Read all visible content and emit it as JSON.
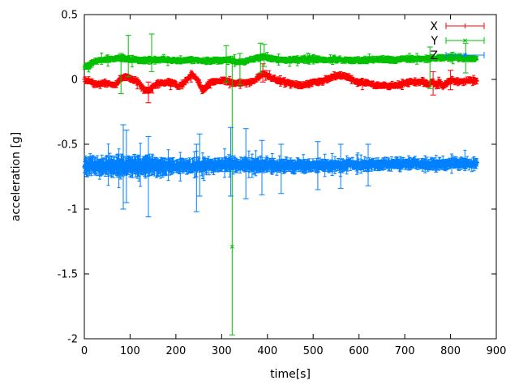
{
  "chart_data": {
    "type": "scatter",
    "style": "points-with-yerrorbars",
    "title": "",
    "xlabel": "time[s]",
    "ylabel": "acceleration [g]",
    "xlim": [
      0,
      900
    ],
    "ylim": [
      -2,
      0.5
    ],
    "xticks": [
      0,
      100,
      200,
      300,
      400,
      500,
      600,
      700,
      800,
      900
    ],
    "yticks": [
      0.5,
      0,
      -0.5,
      -1,
      -1.5,
      -2
    ],
    "grid": false,
    "background": "#ffffff",
    "axis_color": "#000000",
    "legend": {
      "position": "top-right-inside",
      "entries": [
        "X",
        "Y",
        "Z"
      ]
    },
    "sample_interval_s": 1.0,
    "series": [
      {
        "name": "X",
        "color": "#ff0000",
        "marker": "plus",
        "t_start": 0.5,
        "t_end": 858,
        "noise": 0.018,
        "err": 0.015,
        "err_scale": [
          [
            0,
            1
          ],
          [
            858,
            1
          ]
        ],
        "baseline": [
          [
            0,
            0.0
          ],
          [
            12,
            -0.015
          ],
          [
            25,
            -0.04
          ],
          [
            40,
            -0.03
          ],
          [
            55,
            -0.03
          ],
          [
            68,
            -0.04
          ],
          [
            80,
            0.0
          ],
          [
            92,
            0.02
          ],
          [
            104,
            0.0
          ],
          [
            118,
            -0.02
          ],
          [
            130,
            -0.085
          ],
          [
            142,
            -0.09
          ],
          [
            152,
            -0.045
          ],
          [
            162,
            -0.03
          ],
          [
            180,
            -0.02
          ],
          [
            196,
            -0.03
          ],
          [
            205,
            -0.055
          ],
          [
            215,
            -0.04
          ],
          [
            228,
            0.02
          ],
          [
            238,
            0.035
          ],
          [
            248,
            0.0
          ],
          [
            258,
            -0.085
          ],
          [
            266,
            -0.06
          ],
          [
            275,
            -0.03
          ],
          [
            290,
            -0.015
          ],
          [
            305,
            -0.01
          ],
          [
            318,
            -0.02
          ],
          [
            332,
            -0.03
          ],
          [
            346,
            -0.03
          ],
          [
            360,
            -0.025
          ],
          [
            375,
            -0.005
          ],
          [
            388,
            0.045
          ],
          [
            398,
            0.035
          ],
          [
            408,
            0.015
          ],
          [
            420,
            -0.005
          ],
          [
            435,
            -0.02
          ],
          [
            450,
            -0.03
          ],
          [
            465,
            -0.045
          ],
          [
            478,
            -0.05
          ],
          [
            492,
            -0.03
          ],
          [
            505,
            -0.02
          ],
          [
            520,
            -0.015
          ],
          [
            535,
            0.01
          ],
          [
            550,
            0.028
          ],
          [
            565,
            0.03
          ],
          [
            578,
            0.012
          ],
          [
            592,
            -0.018
          ],
          [
            606,
            -0.022
          ],
          [
            620,
            -0.03
          ],
          [
            635,
            -0.042
          ],
          [
            650,
            -0.05
          ],
          [
            668,
            -0.05
          ],
          [
            682,
            -0.048
          ],
          [
            695,
            -0.032
          ],
          [
            710,
            -0.02
          ],
          [
            725,
            -0.018
          ],
          [
            740,
            -0.02
          ],
          [
            752,
            -0.04
          ],
          [
            760,
            -0.01
          ],
          [
            768,
            -0.045
          ],
          [
            776,
            -0.02
          ],
          [
            784,
            -0.055
          ],
          [
            792,
            -0.02
          ],
          [
            802,
            -0.002
          ],
          [
            812,
            -0.02
          ],
          [
            825,
            -0.02
          ],
          [
            840,
            -0.012
          ],
          [
            858,
            -0.008
          ]
        ],
        "outliers": [
          {
            "t": 140,
            "y": -0.1,
            "lo": -0.18,
            "hi": -0.02
          },
          {
            "t": 390,
            "y": 0.05,
            "lo": -0.02,
            "hi": 0.12
          },
          {
            "t": 762,
            "y": -0.02,
            "lo": -0.12,
            "hi": 0.06
          },
          {
            "t": 800,
            "y": 0.0,
            "lo": -0.08,
            "hi": 0.07
          }
        ]
      },
      {
        "name": "Y",
        "color": "#00c000",
        "marker": "cross",
        "t_start": 0.5,
        "t_end": 858,
        "noise": 0.014,
        "err": 0.015,
        "err_scale": [
          [
            0,
            1
          ],
          [
            858,
            1
          ]
        ],
        "baseline": [
          [
            0,
            0.1
          ],
          [
            8,
            0.102
          ],
          [
            16,
            0.125
          ],
          [
            25,
            0.14
          ],
          [
            40,
            0.152
          ],
          [
            60,
            0.158
          ],
          [
            78,
            0.165
          ],
          [
            92,
            0.16
          ],
          [
            105,
            0.152
          ],
          [
            120,
            0.148
          ],
          [
            140,
            0.15
          ],
          [
            160,
            0.153
          ],
          [
            178,
            0.15
          ],
          [
            196,
            0.148
          ],
          [
            215,
            0.145
          ],
          [
            232,
            0.15
          ],
          [
            250,
            0.146
          ],
          [
            268,
            0.142
          ],
          [
            285,
            0.144
          ],
          [
            302,
            0.148
          ],
          [
            318,
            0.15
          ],
          [
            332,
            0.132
          ],
          [
            348,
            0.136
          ],
          [
            364,
            0.15
          ],
          [
            378,
            0.168
          ],
          [
            390,
            0.178
          ],
          [
            402,
            0.168
          ],
          [
            415,
            0.156
          ],
          [
            430,
            0.15
          ],
          [
            450,
            0.15
          ],
          [
            470,
            0.155
          ],
          [
            490,
            0.158
          ],
          [
            510,
            0.154
          ],
          [
            530,
            0.15
          ],
          [
            550,
            0.154
          ],
          [
            570,
            0.15
          ],
          [
            590,
            0.146
          ],
          [
            610,
            0.15
          ],
          [
            630,
            0.15
          ],
          [
            650,
            0.154
          ],
          [
            670,
            0.15
          ],
          [
            690,
            0.158
          ],
          [
            710,
            0.16
          ],
          [
            730,
            0.155
          ],
          [
            750,
            0.16
          ],
          [
            770,
            0.164
          ],
          [
            790,
            0.168
          ],
          [
            808,
            0.173
          ],
          [
            824,
            0.165
          ],
          [
            840,
            0.16
          ],
          [
            858,
            0.16
          ]
        ],
        "outliers": [
          {
            "t": 80,
            "y": 0.15,
            "lo": -0.11,
            "hi": 0.2
          },
          {
            "t": 96,
            "y": 0.17,
            "lo": 0.02,
            "hi": 0.34
          },
          {
            "t": 147,
            "y": 0.15,
            "lo": 0.06,
            "hi": 0.35
          },
          {
            "t": 310,
            "y": 0.15,
            "lo": -0.02,
            "hi": 0.26
          },
          {
            "t": 323,
            "y": -1.29,
            "lo": -1.97,
            "hi": 0.18
          },
          {
            "t": 340,
            "y": 0.13,
            "lo": -0.04,
            "hi": 0.2
          },
          {
            "t": 385,
            "y": 0.18,
            "lo": 0.05,
            "hi": 0.28
          },
          {
            "t": 393,
            "y": 0.19,
            "lo": 0.1,
            "hi": 0.27
          },
          {
            "t": 755,
            "y": 0.16,
            "lo": -0.07,
            "hi": 0.25
          },
          {
            "t": 833,
            "y": 0.17,
            "lo": 0.05,
            "hi": 0.28
          }
        ]
      },
      {
        "name": "Z",
        "color": "#0080ff",
        "marker": "asterisk",
        "t_start": 0.5,
        "t_end": 858,
        "noise": 0.028,
        "err": 0.038,
        "err_scale": [
          [
            0,
            1.5
          ],
          [
            150,
            1.5
          ],
          [
            220,
            1.0
          ],
          [
            450,
            1.0
          ],
          [
            520,
            0.75
          ],
          [
            858,
            0.75
          ]
        ],
        "baseline": [
          [
            0,
            -0.67
          ],
          [
            30,
            -0.667
          ],
          [
            60,
            -0.668
          ],
          [
            90,
            -0.67
          ],
          [
            120,
            -0.668
          ],
          [
            150,
            -0.67
          ],
          [
            180,
            -0.67
          ],
          [
            210,
            -0.667
          ],
          [
            240,
            -0.668
          ],
          [
            270,
            -0.664
          ],
          [
            300,
            -0.66
          ],
          [
            320,
            -0.656
          ],
          [
            340,
            -0.66
          ],
          [
            360,
            -0.664
          ],
          [
            390,
            -0.662
          ],
          [
            420,
            -0.665
          ],
          [
            450,
            -0.667
          ],
          [
            480,
            -0.664
          ],
          [
            510,
            -0.66
          ],
          [
            540,
            -0.66
          ],
          [
            570,
            -0.66
          ],
          [
            600,
            -0.66
          ],
          [
            630,
            -0.657
          ],
          [
            660,
            -0.654
          ],
          [
            690,
            -0.653
          ],
          [
            720,
            -0.65
          ],
          [
            750,
            -0.652
          ],
          [
            780,
            -0.65
          ],
          [
            810,
            -0.65
          ],
          [
            835,
            -0.648
          ],
          [
            858,
            -0.65
          ]
        ],
        "outliers": [
          {
            "t": 85,
            "y": -0.67,
            "lo": -1.0,
            "hi": -0.35
          },
          {
            "t": 92,
            "y": -0.66,
            "lo": -0.95,
            "hi": -0.39
          },
          {
            "t": 140,
            "y": -0.67,
            "lo": -1.06,
            "hi": -0.44
          },
          {
            "t": 245,
            "y": -0.68,
            "lo": -1.02,
            "hi": -0.5
          },
          {
            "t": 252,
            "y": -0.66,
            "lo": -0.9,
            "hi": -0.42
          },
          {
            "t": 320,
            "y": -0.65,
            "lo": -0.9,
            "hi": -0.37
          },
          {
            "t": 353,
            "y": -0.66,
            "lo": -0.92,
            "hi": -0.38
          },
          {
            "t": 388,
            "y": -0.66,
            "lo": -0.89,
            "hi": -0.47
          },
          {
            "t": 430,
            "y": -0.67,
            "lo": -0.88,
            "hi": -0.5
          },
          {
            "t": 510,
            "y": -0.66,
            "lo": -0.85,
            "hi": -0.48
          },
          {
            "t": 560,
            "y": -0.66,
            "lo": -0.84,
            "hi": -0.5
          },
          {
            "t": 620,
            "y": -0.65,
            "lo": -0.82,
            "hi": -0.5
          }
        ]
      }
    ]
  }
}
